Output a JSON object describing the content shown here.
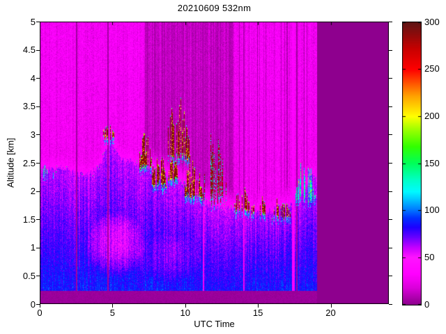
{
  "figure": {
    "background": "#FFFFFF"
  },
  "chart_data": {
    "type": "heatmap",
    "title": "20210609 532nm",
    "xlabel": "UTC Time",
    "ylabel": "Altitude [km]",
    "xlim": [
      0,
      24
    ],
    "ylim": [
      0,
      5
    ],
    "xtick_values": [
      0,
      5,
      10,
      15,
      20
    ],
    "xtick_labels": [
      "0",
      "5",
      "10",
      "15",
      "20"
    ],
    "ytick_values": [
      0,
      0.5,
      1,
      1.5,
      2,
      2.5,
      3,
      3.5,
      4,
      4.5,
      5
    ],
    "ytick_labels": [
      "0",
      "0.5",
      "1",
      "1.5",
      "2",
      "2.5",
      "3",
      "3.5",
      "4",
      "4.5",
      "5"
    ],
    "grid": false,
    "colorbar": {
      "min": 0,
      "max": 300,
      "tick_values": [
        0,
        50,
        100,
        150,
        200,
        250,
        300
      ],
      "tick_labels": [
        "0",
        "50",
        "100",
        "150",
        "200",
        "250",
        "300"
      ],
      "position": "right"
    },
    "colormap_stops": [
      [
        0,
        "#8E008E"
      ],
      [
        18,
        "#DC00DC"
      ],
      [
        32,
        "#FF00FF"
      ],
      [
        50,
        "#FF14FF"
      ],
      [
        60,
        "#C800FF"
      ],
      [
        72,
        "#6400FF"
      ],
      [
        82,
        "#1E00FF"
      ],
      [
        92,
        "#0032FF"
      ],
      [
        102,
        "#0082FF"
      ],
      [
        112,
        "#00C8FF"
      ],
      [
        120,
        "#00FAFF"
      ],
      [
        132,
        "#00FFC8"
      ],
      [
        150,
        "#00FF5A"
      ],
      [
        168,
        "#32FF00"
      ],
      [
        185,
        "#96FF00"
      ],
      [
        200,
        "#FFFF00"
      ],
      [
        222,
        "#FFA000"
      ],
      [
        250,
        "#FF0000"
      ],
      [
        272,
        "#C80000"
      ],
      [
        300,
        "#5F1414"
      ]
    ],
    "no_data": {
      "from_utc": 19.05,
      "to_utc": 24,
      "fill": "#8E008E"
    },
    "surface_band": {
      "center_km": 0.3,
      "blank_below_km": 0.24
    },
    "boundary_layer_top_km": [
      [
        0,
        2.42
      ],
      [
        0.8,
        2.38
      ],
      [
        1.6,
        2.42
      ],
      [
        2.4,
        2.32
      ],
      [
        3.2,
        2.28
      ],
      [
        4.0,
        2.4
      ],
      [
        4.6,
        2.75
      ],
      [
        4.9,
        3.0
      ],
      [
        5.2,
        2.75
      ],
      [
        5.6,
        2.6
      ],
      [
        6.4,
        2.52
      ],
      [
        7.2,
        2.48
      ],
      [
        8.0,
        2.35
      ],
      [
        8.8,
        2.25
      ],
      [
        9.6,
        2.18
      ],
      [
        10.4,
        2.05
      ],
      [
        11.0,
        1.9
      ],
      [
        11.6,
        1.78
      ],
      [
        12.4,
        1.72
      ],
      [
        13.2,
        1.7
      ],
      [
        14.0,
        1.66
      ],
      [
        15.0,
        1.62
      ],
      [
        16.0,
        1.66
      ],
      [
        17.0,
        1.72
      ],
      [
        17.8,
        1.88
      ],
      [
        18.4,
        2.12
      ],
      [
        18.8,
        2.3
      ],
      [
        19.1,
        2.25
      ]
    ],
    "attenuated_above_clouds_utc": [
      7.2,
      13.3
    ],
    "gap_columns": [
      {
        "t": 2.55,
        "mode": "dark"
      },
      {
        "t": 4.7,
        "mode": "dark"
      },
      {
        "t": 11.25,
        "mode": "mid"
      },
      {
        "t": 14.05,
        "mode": "mid"
      },
      {
        "t": 17.45,
        "mode": "bright"
      },
      {
        "t": 17.68,
        "mode": "dark"
      }
    ],
    "cloud_layers": [
      {
        "t0": 0.15,
        "t1": 0.95,
        "base_km": 2.28,
        "top_km": 2.52,
        "density": 0.25,
        "kind": "cyan"
      },
      {
        "t0": 4.35,
        "t1": 5.15,
        "base_km": 2.92,
        "top_km": 3.28,
        "density": 0.75,
        "kind": "mixed"
      },
      {
        "t0": 6.8,
        "t1": 7.7,
        "base_km": 2.38,
        "top_km": 3.0,
        "density": 0.8,
        "kind": "mixed"
      },
      {
        "t0": 7.7,
        "t1": 8.7,
        "base_km": 2.05,
        "top_km": 2.8,
        "density": 0.75,
        "kind": "mixed"
      },
      {
        "t0": 8.7,
        "t1": 10.35,
        "base_km": 2.5,
        "top_km": 3.58,
        "density": 0.7,
        "kind": "mixed"
      },
      {
        "t0": 8.8,
        "t1": 9.6,
        "base_km": 2.15,
        "top_km": 2.6,
        "density": 0.6,
        "kind": "mixed"
      },
      {
        "t0": 9.9,
        "t1": 11.2,
        "base_km": 1.85,
        "top_km": 2.6,
        "density": 0.7,
        "kind": "mixed"
      },
      {
        "t0": 11.25,
        "t1": 12.85,
        "base_km": 1.75,
        "top_km": 3.0,
        "density": 0.38,
        "kind": "streak"
      },
      {
        "t0": 13.35,
        "t1": 14.45,
        "base_km": 1.62,
        "top_km": 2.05,
        "density": 0.55,
        "kind": "mixed"
      },
      {
        "t0": 14.5,
        "t1": 15.65,
        "base_km": 1.55,
        "top_km": 1.9,
        "density": 0.4,
        "kind": "mixed"
      },
      {
        "t0": 15.95,
        "t1": 17.25,
        "base_km": 1.5,
        "top_km": 1.95,
        "density": 0.45,
        "kind": "mixed"
      },
      {
        "t0": 17.55,
        "t1": 18.95,
        "base_km": 1.8,
        "top_km": 2.5,
        "density": 0.7,
        "kind": "cyan"
      }
    ],
    "noise_seed": 11
  }
}
